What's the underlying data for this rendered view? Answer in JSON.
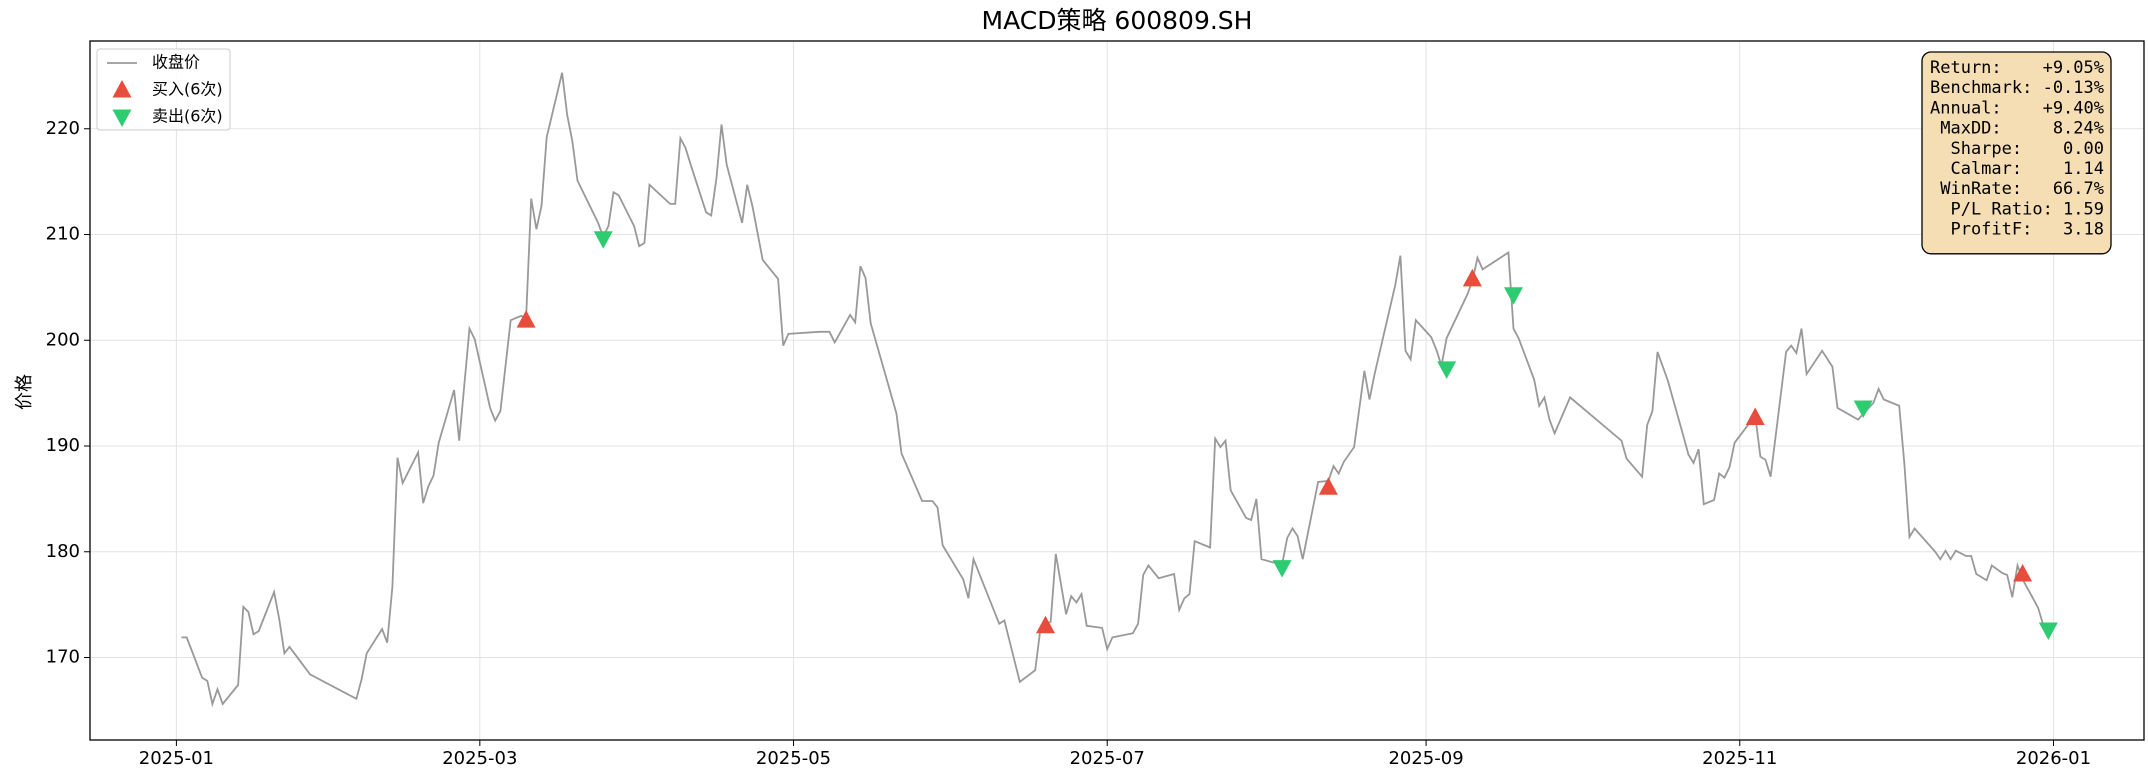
{
  "chart_data": {
    "type": "line",
    "title": "MACD策略  600809.SH",
    "ylabel": "价格",
    "grid": true,
    "legend": "upper left",
    "xlim": [
      -16.8,
      382.6
    ],
    "xticks": [
      {
        "value": 0,
        "label": "2025-01"
      },
      {
        "value": 59,
        "label": "2025-03"
      },
      {
        "value": 120,
        "label": "2025-05"
      },
      {
        "value": 181,
        "label": "2025-07"
      },
      {
        "value": 243,
        "label": "2025-09"
      },
      {
        "value": 304,
        "label": "2025-11"
      },
      {
        "value": 365,
        "label": "2026-01"
      }
    ],
    "ylim": [
      162.2,
      228.3
    ],
    "yticks": [
      170,
      180,
      190,
      200,
      210,
      220
    ],
    "series": [
      {
        "name": "收盘价",
        "color": "#999999",
        "kind": "line",
        "x": [
          1,
          2,
          5,
          6,
          7,
          8,
          9,
          12,
          13,
          14,
          15,
          16,
          19,
          20,
          21,
          22,
          26,
          35,
          36,
          37,
          40,
          41,
          42,
          43,
          44,
          47,
          48,
          49,
          50,
          51,
          54,
          55,
          57,
          58,
          61,
          62,
          63,
          65,
          67,
          68,
          69,
          70,
          71,
          72,
          75,
          76,
          77,
          78,
          82,
          83,
          84,
          85,
          86,
          89,
          90,
          91,
          92,
          96,
          97,
          98,
          99,
          100,
          103,
          104,
          105,
          106,
          107,
          110,
          111,
          112,
          114,
          117,
          118,
          119,
          125,
          127,
          128,
          131,
          132,
          133,
          134,
          135,
          140,
          141,
          145,
          147,
          148,
          149,
          153,
          154,
          155,
          160,
          161,
          164,
          167,
          168,
          170,
          171,
          173,
          174,
          175,
          176,
          177,
          180,
          181,
          182,
          186,
          187,
          188,
          189,
          191,
          194,
          195,
          196,
          197,
          198,
          201,
          202,
          203,
          204,
          205,
          208,
          209,
          210,
          211,
          214,
          215,
          216,
          217,
          218,
          219,
          222,
          224,
          225,
          226,
          227,
          229,
          231,
          232,
          233,
          237,
          238,
          239,
          240,
          241,
          244,
          245,
          246,
          247,
          251,
          252,
          253,
          254,
          259,
          260,
          261,
          264,
          265,
          266,
          267,
          268,
          271,
          281,
          282,
          285,
          286,
          287,
          288,
          290,
          293,
          294,
          295,
          296,
          297,
          299,
          300,
          301,
          302,
          303,
          307,
          308,
          309,
          310,
          313,
          314,
          315,
          316,
          317,
          320,
          322,
          323,
          327,
          330,
          331,
          332,
          335,
          336,
          337,
          338,
          342,
          343,
          344,
          345,
          346,
          348,
          349,
          350,
          351,
          352,
          353,
          355,
          356,
          357,
          358,
          359,
          360,
          362,
          363,
          364
        ],
        "values": [
          171.9,
          171.9,
          168.1,
          167.8,
          165.6,
          167.0,
          165.6,
          167.4,
          174.8,
          174.3,
          172.2,
          172.5,
          176.2,
          173.6,
          170.4,
          171.0,
          168.4,
          166.1,
          167.9,
          170.4,
          172.7,
          171.4,
          176.7,
          188.9,
          186.5,
          189.4,
          184.6,
          186.2,
          187.2,
          190.3,
          195.3,
          190.5,
          201.1,
          200.1,
          193.6,
          192.4,
          193.3,
          201.9,
          202.3,
          202.1,
          213.4,
          210.5,
          212.7,
          219.2,
          225.3,
          221.3,
          218.8,
          215.1,
          211.1,
          209.8,
          210.8,
          214.0,
          213.7,
          210.8,
          208.9,
          209.2,
          214.7,
          212.9,
          212.9,
          219.1,
          218.2,
          216.6,
          212.1,
          211.8,
          215.3,
          220.4,
          216.6,
          211.1,
          214.7,
          212.7,
          207.6,
          205.8,
          199.5,
          200.6,
          200.8,
          200.8,
          199.8,
          202.4,
          201.7,
          207.0,
          205.9,
          201.6,
          193.1,
          189.3,
          184.8,
          184.8,
          184.2,
          180.6,
          177.4,
          175.6,
          179.3,
          173.2,
          173.5,
          167.7,
          168.8,
          172.7,
          173.4,
          179.8,
          174.1,
          175.8,
          175.2,
          176.0,
          173.0,
          172.8,
          170.8,
          171.9,
          172.3,
          173.2,
          177.8,
          178.7,
          177.5,
          177.9,
          174.5,
          175.6,
          176.0,
          181.0,
          180.4,
          190.7,
          189.9,
          190.5,
          185.8,
          183.2,
          183.0,
          185.0,
          179.3,
          178.9,
          178.8,
          181.3,
          182.2,
          181.5,
          179.3,
          186.6,
          186.7,
          188.1,
          187.4,
          188.5,
          189.9,
          197.1,
          194.4,
          196.8,
          205.2,
          208.0,
          199.0,
          198.2,
          201.9,
          200.3,
          199.1,
          197.6,
          200.2,
          204.3,
          205.6,
          207.8,
          206.7,
          208.3,
          201.1,
          200.2,
          196.3,
          193.8,
          194.6,
          192.5,
          191.2,
          194.6,
          190.5,
          188.8,
          187.1,
          192.0,
          193.3,
          198.9,
          196.2,
          191.0,
          189.2,
          188.4,
          189.7,
          184.5,
          184.9,
          187.4,
          187.0,
          188.0,
          190.3,
          192.9,
          189.0,
          188.7,
          187.1,
          198.9,
          199.5,
          198.8,
          201.1,
          196.8,
          199.0,
          197.5,
          193.6,
          192.5,
          194.1,
          195.4,
          194.4,
          193.8,
          188.4,
          181.4,
          182.2,
          180.0,
          179.3,
          180.1,
          179.3,
          180.1,
          179.6,
          179.6,
          177.9,
          177.6,
          177.3,
          178.7,
          178.0,
          177.8,
          175.7,
          178.7,
          177.4,
          176.5,
          174.7,
          173.1,
          172.3
        ]
      },
      {
        "name": "买入(6次)",
        "color": "#e74c3c",
        "kind": "scatter",
        "marker": "up",
        "x": [
          68,
          169,
          224,
          252,
          307,
          359
        ],
        "values": [
          201.9,
          173.0,
          186.1,
          205.8,
          192.7,
          177.9
        ]
      },
      {
        "name": "卖出(6次)",
        "color": "#2ecc71",
        "kind": "scatter",
        "marker": "down",
        "x": [
          83,
          215,
          247,
          260,
          328,
          364
        ],
        "values": [
          209.6,
          178.5,
          197.3,
          204.3,
          193.6,
          172.6
        ]
      }
    ],
    "stats_box": [
      "Return:    +9.05%",
      "Benchmark: -0.13%",
      "Annual:    +9.40%",
      " MaxDD:     8.24%",
      "  Sharpe:    0.00",
      "  Calmar:    1.14",
      " WinRate:   66.7%",
      "  P/L Ratio: 1.59",
      "  ProfitF:   3.18"
    ]
  }
}
